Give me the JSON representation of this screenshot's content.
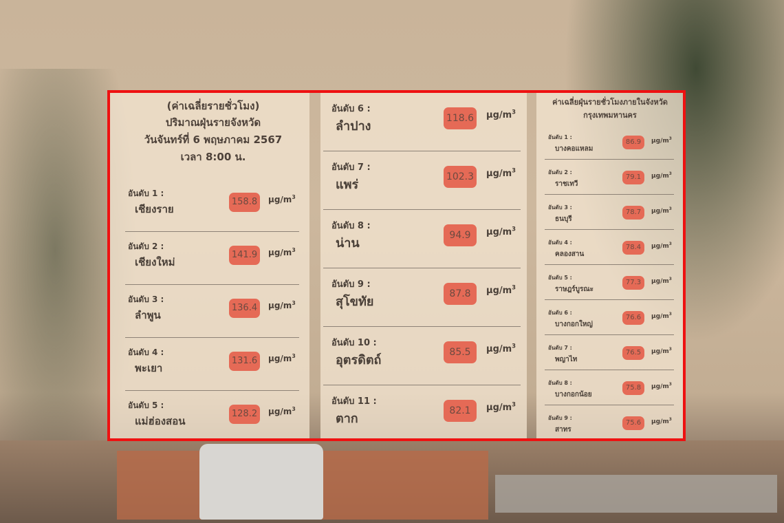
{
  "left": {
    "header": [
      "(ค่าเฉลี่ยรายชั่วโมง)",
      "ปริมาณฝุ่นรายจังหวัด",
      "วันจันทร์ที่ 6 พฤษภาคม 2567",
      "เวลา 8:00 น."
    ],
    "items": [
      {
        "rank": "อันดับ 1 :",
        "name": "เชียงราย",
        "value": "158.8"
      },
      {
        "rank": "อันดับ 2 :",
        "name": "เชียงใหม่",
        "value": "141.9"
      },
      {
        "rank": "อันดับ 3 :",
        "name": "ลำพูน",
        "value": "136.4"
      },
      {
        "rank": "อันดับ 4 :",
        "name": "พะเยา",
        "value": "131.6"
      },
      {
        "rank": "อันดับ 5 :",
        "name": "แม่ฮ่องสอน",
        "value": "128.2"
      }
    ]
  },
  "middle": {
    "items": [
      {
        "rank": "อันดับ 6 :",
        "name": "ลำปาง",
        "value": "118.6"
      },
      {
        "rank": "อันดับ 7 :",
        "name": "แพร่",
        "value": "102.3"
      },
      {
        "rank": "อันดับ 8 :",
        "name": "น่าน",
        "value": "94.9"
      },
      {
        "rank": "อันดับ 9 :",
        "name": "สุโขทัย",
        "value": "87.8"
      },
      {
        "rank": "อันดับ 10 :",
        "name": "อุตรดิตถ์",
        "value": "85.5"
      },
      {
        "rank": "อันดับ 11 :",
        "name": "ตาก",
        "value": "82.1"
      }
    ]
  },
  "right": {
    "header": [
      "ค่าเฉลี่ยฝุ่นรายชั่วโมงภายในจังหวัด",
      "กรุงเทพมหานคร"
    ],
    "items": [
      {
        "rank": "อันดับ 1 :",
        "name": "บางคอแหลม",
        "value": "86.9"
      },
      {
        "rank": "อันดับ 2 :",
        "name": "ราชเทวี",
        "value": "79.1"
      },
      {
        "rank": "อันดับ 3 :",
        "name": "ธนบุรี",
        "value": "78.7"
      },
      {
        "rank": "อันดับ 4 :",
        "name": "คลองสาน",
        "value": "78.4"
      },
      {
        "rank": "อันดับ 5 :",
        "name": "ราษฎร์บูรณะ",
        "value": "77.3"
      },
      {
        "rank": "อันดับ 6 :",
        "name": "บางกอกใหญ่",
        "value": "76.6"
      },
      {
        "rank": "อันดับ 7 :",
        "name": "พญาไท",
        "value": "76.5"
      },
      {
        "rank": "อันดับ 8 :",
        "name": "บางกอกน้อย",
        "value": "75.8"
      },
      {
        "rank": "อันดับ 9 :",
        "name": "สาทร",
        "value": "75.6"
      }
    ]
  },
  "unit": {
    "base": "µg/m",
    "exp": "3"
  },
  "colors": {
    "frame": "#ee1111",
    "badge": "#e56a56"
  }
}
